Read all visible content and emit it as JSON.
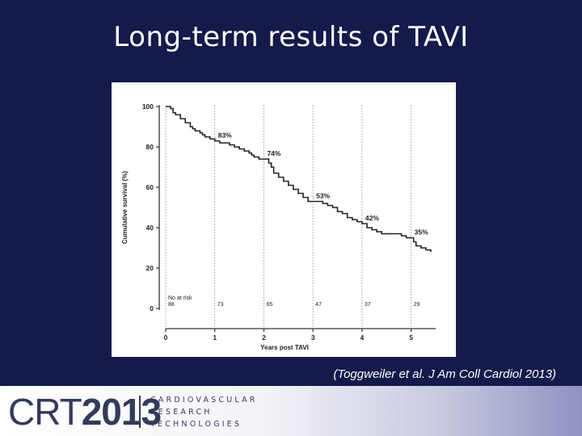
{
  "slide": {
    "title": "Long-term results of TAVI",
    "citation": "(Toggweiler et al. J Am Coll Cardiol 2013)"
  },
  "footer": {
    "logo_crt": "CRT",
    "logo_year": "2013",
    "logo_line1": "CARDIOVASCULAR",
    "logo_line2": "RESEARCH",
    "logo_line3": "TECHNOLOGIES"
  },
  "colors": {
    "background": "#141a4a",
    "curve": "#222222",
    "footer_text": "#333b5a"
  },
  "chart_data": {
    "type": "line",
    "title": "",
    "xlabel": "Years post TAVI",
    "ylabel": "Cumulative survival (%)",
    "xlim": [
      0,
      5.5
    ],
    "ylim": [
      0,
      100
    ],
    "x_ticks": [
      "0",
      "1",
      "2",
      "3",
      "4",
      "5"
    ],
    "y_ticks": [
      "0",
      "20",
      "40",
      "60",
      "80",
      "100"
    ],
    "grid": false,
    "series": [
      {
        "x": [
          0,
          0.05,
          0.1,
          0.15,
          0.2,
          0.3,
          0.4,
          0.5,
          0.55,
          0.6,
          0.7,
          0.75,
          0.8,
          0.9,
          1.0,
          1.1,
          1.2,
          1.3,
          1.4,
          1.5,
          1.6,
          1.7,
          1.75,
          1.8,
          1.9,
          2.0,
          2.1,
          2.15,
          2.2,
          2.3,
          2.4,
          2.5,
          2.6,
          2.7,
          2.8,
          2.9,
          3.0,
          3.1,
          3.2,
          3.3,
          3.4,
          3.5,
          3.6,
          3.7,
          3.8,
          3.9,
          4.0,
          4.1,
          4.2,
          4.3,
          4.4,
          4.5,
          4.6,
          4.7,
          4.8,
          4.9,
          5.0,
          5.05,
          5.1,
          5.2,
          5.3,
          5.4
        ],
        "y": [
          100,
          100,
          99,
          97,
          96,
          94,
          92,
          90,
          89,
          88,
          87,
          86,
          85,
          84,
          83,
          82,
          82,
          81,
          80,
          79,
          78,
          77,
          76,
          75,
          74,
          74,
          72,
          70,
          67,
          65,
          63,
          61,
          59,
          57,
          55,
          53,
          53,
          53,
          52,
          51,
          50,
          48,
          47,
          45,
          44,
          43,
          42,
          40,
          39,
          38,
          37,
          37,
          37,
          37,
          36,
          35,
          35,
          33,
          31,
          30,
          29,
          28
        ]
      }
    ],
    "annotations": [
      {
        "x": 1,
        "y": 83,
        "label": "83%"
      },
      {
        "x": 2,
        "y": 74,
        "label": "74%"
      },
      {
        "x": 3,
        "y": 53,
        "label": "53%"
      },
      {
        "x": 4,
        "y": 42,
        "label": "42%"
      },
      {
        "x": 5,
        "y": 35,
        "label": "35%"
      }
    ],
    "at_risk": {
      "label": "No at risk",
      "values": [
        "88",
        "73",
        "65",
        "47",
        "37",
        "29"
      ]
    }
  }
}
